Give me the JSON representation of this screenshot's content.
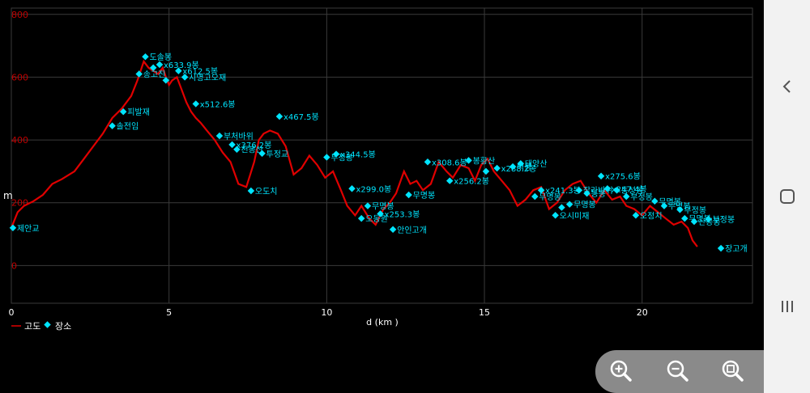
{
  "chart_data": {
    "type": "line",
    "title": "",
    "xlabel": "d (km )",
    "ylabel": "m",
    "xlim": [
      0,
      23.5
    ],
    "ylim": [
      -120,
      820
    ],
    "xticks": [
      0,
      5,
      10,
      15,
      20
    ],
    "yticks": [
      0,
      200,
      400,
      600,
      800
    ],
    "grid": true,
    "legend_position": "bottom-left",
    "colors": {
      "elevation": "#e00000",
      "place": "#00e5ff",
      "grid": "#3a3a3a",
      "ytick": "#c00000",
      "text": "#ffffff"
    },
    "series": [
      {
        "name": "고도",
        "kind": "line",
        "x": [
          0,
          0.2,
          0.4,
          0.7,
          1.0,
          1.3,
          1.6,
          2.0,
          2.3,
          2.6,
          2.9,
          3.2,
          3.5,
          3.8,
          4.0,
          4.2,
          4.35,
          4.5,
          4.65,
          4.8,
          4.9,
          5.0,
          5.1,
          5.25,
          5.4,
          5.55,
          5.7,
          5.85,
          6.0,
          6.2,
          6.45,
          6.7,
          6.95,
          7.2,
          7.45,
          7.7,
          7.85,
          8.0,
          8.2,
          8.45,
          8.7,
          8.95,
          9.2,
          9.45,
          9.7,
          9.95,
          10.2,
          10.45,
          10.65,
          10.9,
          11.1,
          11.35,
          11.55,
          11.8,
          12.0,
          12.2,
          12.45,
          12.65,
          12.85,
          13.05,
          13.3,
          13.55,
          13.8,
          14.0,
          14.25,
          14.5,
          14.7,
          14.9,
          15.1,
          15.3,
          15.55,
          15.8,
          16.05,
          16.3,
          16.55,
          16.8,
          17.05,
          17.3,
          17.55,
          17.8,
          18.05,
          18.3,
          18.55,
          18.8,
          19.05,
          19.3,
          19.5,
          19.75,
          20.0,
          20.25,
          20.5,
          20.75,
          21.0,
          21.25,
          21.45,
          21.6,
          21.75
        ],
        "y": [
          120,
          170,
          190,
          205,
          225,
          260,
          275,
          300,
          340,
          380,
          420,
          470,
          500,
          540,
          590,
          650,
          630,
          620,
          610,
          630,
          600,
          575,
          590,
          600,
          560,
          520,
          490,
          470,
          455,
          430,
          400,
          360,
          330,
          260,
          250,
          330,
          400,
          420,
          430,
          420,
          380,
          290,
          310,
          350,
          320,
          280,
          300,
          240,
          190,
          160,
          190,
          150,
          130,
          180,
          200,
          230,
          300,
          260,
          270,
          240,
          260,
          330,
          300,
          280,
          320,
          310,
          270,
          320,
          340,
          300,
          270,
          240,
          190,
          210,
          240,
          250,
          180,
          200,
          240,
          260,
          270,
          230,
          200,
          240,
          210,
          220,
          190,
          180,
          160,
          190,
          170,
          150,
          130,
          140,
          120,
          80,
          60
        ]
      },
      {
        "name": "장소",
        "kind": "scatter",
        "points": [
          {
            "x": 0.05,
            "y": 120,
            "label": "제안교"
          },
          {
            "x": 3.2,
            "y": 445,
            "label": "솔전임"
          },
          {
            "x": 3.55,
            "y": 490,
            "label": "피발재"
          },
          {
            "x": 4.05,
            "y": 610,
            "label": "송고진"
          },
          {
            "x": 4.25,
            "y": 665,
            "label": "도솔봉"
          },
          {
            "x": 4.5,
            "y": 630,
            "label": ""
          },
          {
            "x": 4.7,
            "y": 640,
            "label": "x633.9봉"
          },
          {
            "x": 4.9,
            "y": 590,
            "label": ""
          },
          {
            "x": 5.3,
            "y": 620,
            "label": "x612.5봉"
          },
          {
            "x": 5.5,
            "y": 600,
            "label": "시명고오재"
          },
          {
            "x": 5.85,
            "y": 515,
            "label": "x512.6봉"
          },
          {
            "x": 6.6,
            "y": 413,
            "label": "부처바위"
          },
          {
            "x": 7.0,
            "y": 385,
            "label": "x376.2봉"
          },
          {
            "x": 7.15,
            "y": 370,
            "label": "천봉산"
          },
          {
            "x": 7.6,
            "y": 238,
            "label": "오도치"
          },
          {
            "x": 7.95,
            "y": 357,
            "label": "투정교"
          },
          {
            "x": 8.5,
            "y": 475,
            "label": "x467.5봉"
          },
          {
            "x": 10.0,
            "y": 345,
            "label": "부정봉"
          },
          {
            "x": 10.3,
            "y": 355,
            "label": "x344.5봉"
          },
          {
            "x": 10.8,
            "y": 245,
            "label": "x299.0봉"
          },
          {
            "x": 11.3,
            "y": 190,
            "label": "무명봉"
          },
          {
            "x": 11.1,
            "y": 150,
            "label": "오동원"
          },
          {
            "x": 11.7,
            "y": 165,
            "label": "x253.3봉"
          },
          {
            "x": 12.1,
            "y": 115,
            "label": "안인고개"
          },
          {
            "x": 12.6,
            "y": 225,
            "label": "무명봉"
          },
          {
            "x": 13.2,
            "y": 330,
            "label": "x308.6봉"
          },
          {
            "x": 13.9,
            "y": 270,
            "label": "x256.2봉"
          },
          {
            "x": 14.5,
            "y": 335,
            "label": "봉황산"
          },
          {
            "x": 15.05,
            "y": 300,
            "label": ""
          },
          {
            "x": 15.4,
            "y": 310,
            "label": "x288.2봉"
          },
          {
            "x": 15.9,
            "y": 315,
            "label": "벽봉"
          },
          {
            "x": 16.15,
            "y": 325,
            "label": "태양산"
          },
          {
            "x": 16.6,
            "y": 220,
            "label": "무명봉"
          },
          {
            "x": 16.8,
            "y": 240,
            "label": "x241.3봉"
          },
          {
            "x": 17.25,
            "y": 160,
            "label": "오시미재"
          },
          {
            "x": 17.45,
            "y": 185,
            "label": ""
          },
          {
            "x": 17.7,
            "y": 195,
            "label": "무명봉"
          },
          {
            "x": 18.0,
            "y": 240,
            "label": "잡라바위"
          },
          {
            "x": 18.25,
            "y": 230,
            "label": "동봉"
          },
          {
            "x": 18.7,
            "y": 285,
            "label": "x275.6봉"
          },
          {
            "x": 18.9,
            "y": 245,
            "label": "x247.4봉"
          },
          {
            "x": 19.2,
            "y": 240,
            "label": "동성봉"
          },
          {
            "x": 19.5,
            "y": 220,
            "label": "부정봉"
          },
          {
            "x": 19.8,
            "y": 160,
            "label": "오정치"
          },
          {
            "x": 20.4,
            "y": 205,
            "label": "무명봉"
          },
          {
            "x": 20.7,
            "y": 190,
            "label": "무명봉"
          },
          {
            "x": 21.2,
            "y": 178,
            "label": "부정봉"
          },
          {
            "x": 21.35,
            "y": 150,
            "label": "무명봉"
          },
          {
            "x": 21.65,
            "y": 140,
            "label": "산봉봉"
          },
          {
            "x": 22.1,
            "y": 148,
            "label": "부정봉"
          },
          {
            "x": 22.5,
            "y": 55,
            "label": "장고개"
          }
        ]
      }
    ]
  },
  "controls": {
    "zoom_in": "zoom-in",
    "zoom_out": "zoom-out",
    "zoom_fit": "zoom-fit"
  }
}
